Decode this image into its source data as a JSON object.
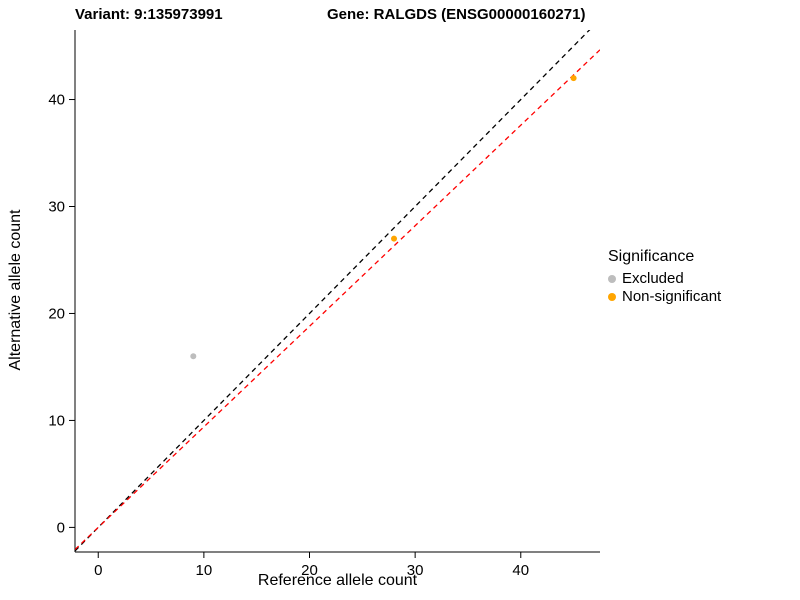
{
  "chart_data": {
    "type": "scatter",
    "title_variant": "Variant: 9:135973991",
    "title_gene": "Gene: RALGDS (ENSG00000160271)",
    "xlabel": "Reference allele count",
    "ylabel": "Alternative allele count",
    "xlim": [
      -2.2,
      47.5
    ],
    "ylim": [
      -2.3,
      46.5
    ],
    "xticks": [
      0,
      10,
      20,
      30,
      40
    ],
    "yticks": [
      0,
      10,
      20,
      30,
      40
    ],
    "grid": false,
    "background": "#ffffff",
    "axis_color": "#000000",
    "points": [
      {
        "x": 9,
        "y": 16,
        "group": "Excluded"
      },
      {
        "x": 28,
        "y": 27,
        "group": "Non-significant"
      },
      {
        "x": 45,
        "y": 42,
        "group": "Non-significant"
      }
    ],
    "lines": [
      {
        "name": "identity-line",
        "slope": 1.0,
        "intercept": 0,
        "color": "#000000",
        "dashed": true
      },
      {
        "name": "fit-line",
        "slope": 0.94,
        "intercept": 0,
        "color": "#ff0000",
        "dashed": true
      }
    ],
    "legend": {
      "title": "Significance",
      "position": "right",
      "entries": [
        {
          "label": "Excluded",
          "color": "#bdbdbd"
        },
        {
          "label": "Non-significant",
          "color": "#ffa500"
        }
      ]
    }
  }
}
